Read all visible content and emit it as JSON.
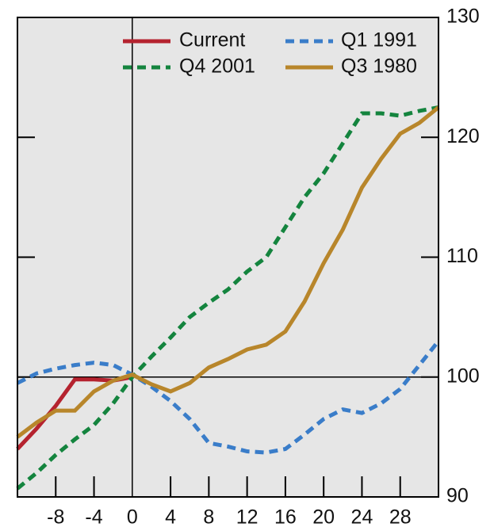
{
  "chart_data": {
    "type": "line",
    "x": [
      -12,
      -10,
      -8,
      -6,
      -4,
      -2,
      0,
      2,
      4,
      6,
      8,
      10,
      12,
      14,
      16,
      18,
      20,
      22,
      24,
      26,
      28,
      30,
      32
    ],
    "series": [
      {
        "name": "Current",
        "color": "#b5232f",
        "style": "solid",
        "values": [
          94,
          95.7,
          97.6,
          99.8,
          99.8,
          99.7,
          100,
          null,
          null,
          null,
          null,
          null,
          null,
          null,
          null,
          null,
          null,
          null,
          null,
          null,
          null,
          null,
          null
        ]
      },
      {
        "name": "Q1 1991",
        "color": "#3a7dc9",
        "style": "dashed",
        "values": [
          99.5,
          100.3,
          100.7,
          101,
          101.2,
          101,
          100.2,
          99.2,
          98,
          96.5,
          94.5,
          94.2,
          93.8,
          93.7,
          94,
          95.2,
          96.5,
          97.3,
          97,
          97.8,
          99,
          101,
          103
        ]
      },
      {
        "name": "Q4 2001",
        "color": "#14843e",
        "style": "dashed",
        "values": [
          90.7,
          92,
          93.5,
          94.8,
          96,
          97.8,
          100,
          101.7,
          103.3,
          105,
          106.2,
          107.3,
          108.8,
          110,
          112.5,
          115,
          117,
          119.5,
          122,
          122,
          121.8,
          122.2,
          122.5
        ]
      },
      {
        "name": "Q3 1980",
        "color": "#b8862b",
        "style": "solid",
        "values": [
          95,
          96.2,
          97.2,
          97.2,
          98.8,
          99.7,
          100.2,
          99.4,
          98.8,
          99.5,
          100.8,
          101.5,
          102.3,
          102.7,
          103.8,
          106.3,
          109.5,
          112.3,
          115.8,
          118.2,
          120.3,
          121.2,
          122.5
        ]
      }
    ],
    "xlim": [
      -12,
      32
    ],
    "xticks": [
      -8,
      -4,
      0,
      4,
      8,
      12,
      16,
      20,
      24,
      28
    ],
    "ylim": [
      90,
      130
    ],
    "yticks": [
      90,
      100,
      110,
      120,
      130
    ],
    "y_axis_side": "right",
    "background": "#e6e6e6"
  }
}
